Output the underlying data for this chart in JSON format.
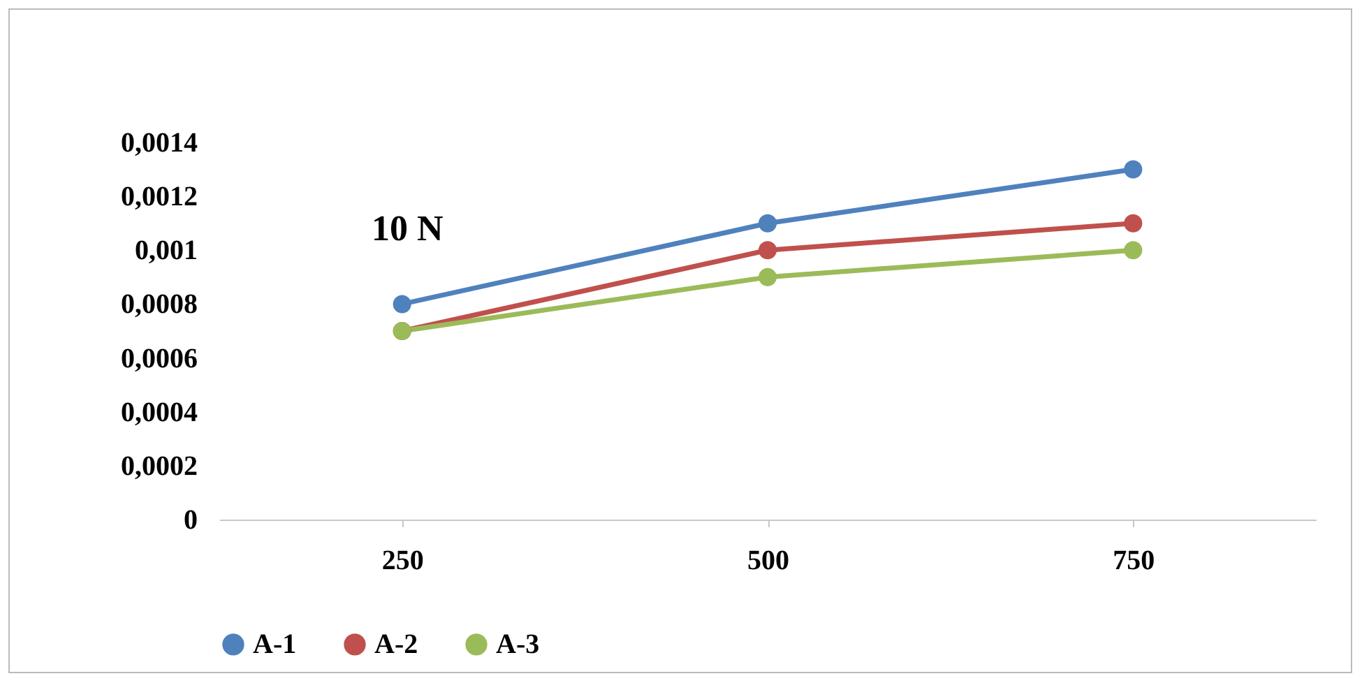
{
  "chart_data": {
    "type": "line",
    "title": "10 N",
    "categories": [
      "250",
      "500",
      "750"
    ],
    "series": [
      {
        "name": "A-1",
        "color": "#4f81bd",
        "values": [
          0.0008,
          0.0011,
          0.0013
        ]
      },
      {
        "name": "A-2",
        "color": "#c0504d",
        "values": [
          0.0007,
          0.001,
          0.0011
        ]
      },
      {
        "name": "A-3",
        "color": "#9bbb59",
        "values": [
          0.0007,
          0.0009,
          0.001
        ]
      }
    ],
    "ylim": [
      0,
      0.0014
    ],
    "yticks": [
      {
        "value": 0,
        "label": "0"
      },
      {
        "value": 0.0002,
        "label": "0,0002"
      },
      {
        "value": 0.0004,
        "label": "0,0004"
      },
      {
        "value": 0.0006,
        "label": "0,0006"
      },
      {
        "value": 0.0008,
        "label": "0,0008"
      },
      {
        "value": 0.001,
        "label": "0,001"
      },
      {
        "value": 0.0012,
        "label": "0,0012"
      },
      {
        "value": 0.0014,
        "label": "0,0014"
      }
    ],
    "grid": false,
    "legend": "bottom",
    "marker": "circle",
    "line_style": "solid"
  }
}
